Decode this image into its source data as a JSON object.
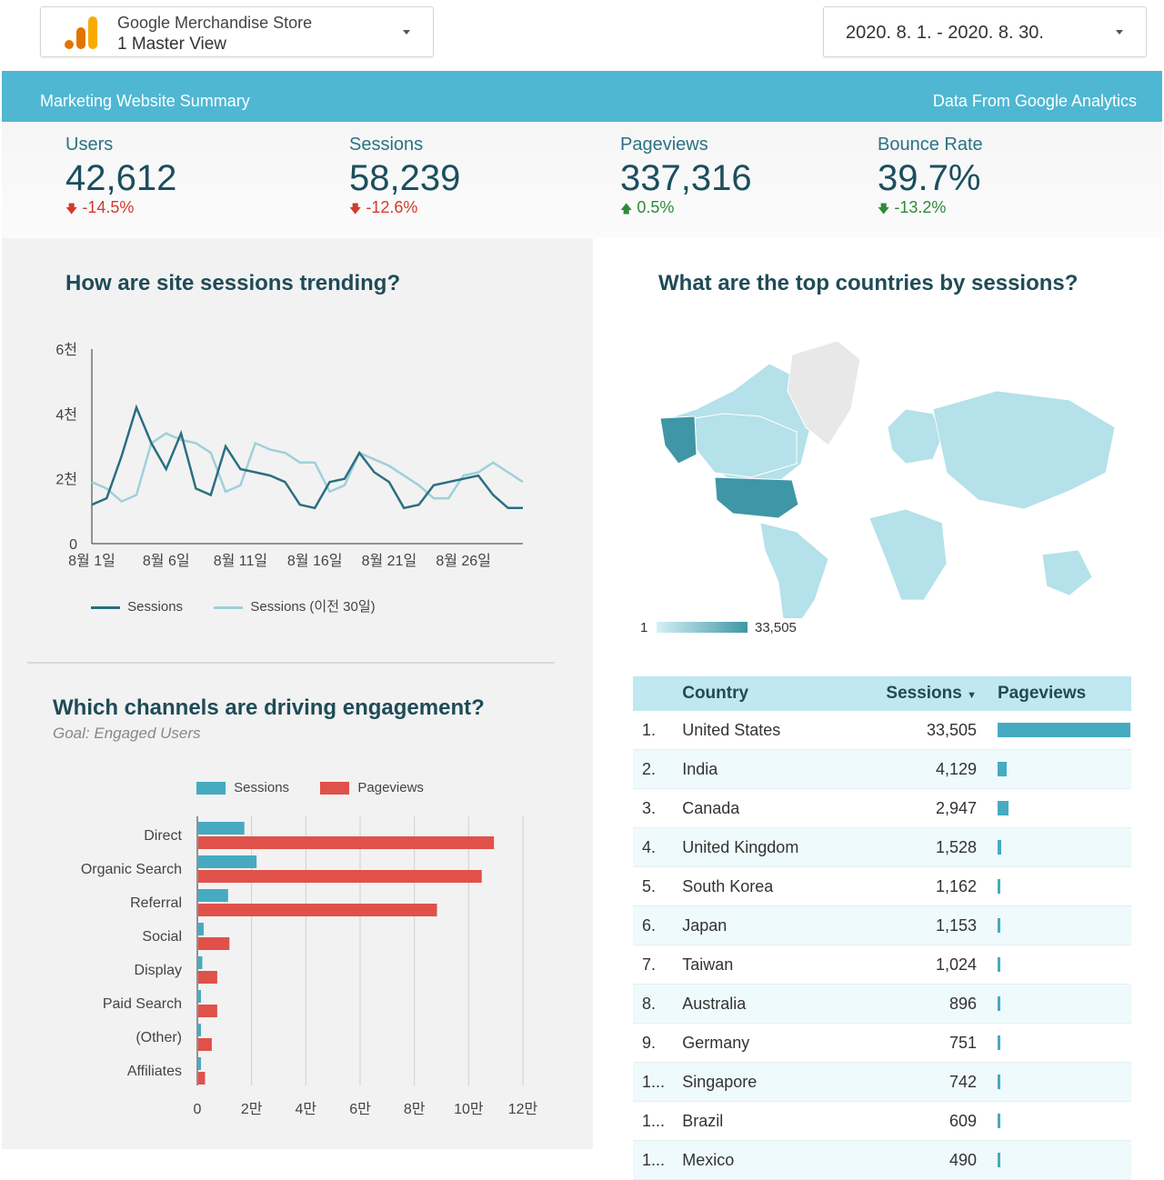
{
  "account_selector": {
    "title": "Google Merchandise Store",
    "view": "1 Master View"
  },
  "date_selector": {
    "value": "2020. 8. 1. - 2020. 8. 30."
  },
  "banner": {
    "left": "Marketing Website Summary",
    "right": "Data From Google Analytics"
  },
  "kpis": [
    {
      "label": "Users",
      "value": "42,612",
      "delta": "-14.5%",
      "trend": "down-bad"
    },
    {
      "label": "Sessions",
      "value": "58,239",
      "delta": "-12.6%",
      "trend": "down-bad"
    },
    {
      "label": "Pageviews",
      "value": "337,316",
      "delta": "0.5%",
      "trend": "up-good"
    },
    {
      "label": "Bounce Rate",
      "value": "39.7%",
      "delta": "-13.2%",
      "trend": "down-good"
    }
  ],
  "sessions_trend": {
    "heading": "How are site sessions trending?",
    "legend": [
      "Sessions",
      "Sessions (이전 30일)"
    ]
  },
  "countries_map": {
    "heading": "What are the top countries by sessions?",
    "scale_min": "1",
    "scale_max": "33,505"
  },
  "channels": {
    "heading": "Which channels are driving engagement?",
    "subtitle": "Goal: Engaged Users",
    "legend": [
      "Sessions",
      "Pageviews"
    ]
  },
  "country_table": {
    "headers": [
      "Country",
      "Sessions",
      "Pageviews"
    ],
    "rows": [
      {
        "rank": "1.",
        "country": "United States",
        "sessions": "33,505",
        "pageviews_fraction": 1.0
      },
      {
        "rank": "2.",
        "country": "India",
        "sessions": "4,129",
        "pageviews_fraction": 0.07
      },
      {
        "rank": "3.",
        "country": "Canada",
        "sessions": "2,947",
        "pageviews_fraction": 0.08
      },
      {
        "rank": "4.",
        "country": "United Kingdom",
        "sessions": "1,528",
        "pageviews_fraction": 0.025
      },
      {
        "rank": "5.",
        "country": "South Korea",
        "sessions": "1,162",
        "pageviews_fraction": 0.02
      },
      {
        "rank": "6.",
        "country": "Japan",
        "sessions": "1,153",
        "pageviews_fraction": 0.02
      },
      {
        "rank": "7.",
        "country": "Taiwan",
        "sessions": "1,024",
        "pageviews_fraction": 0.02
      },
      {
        "rank": "8.",
        "country": "Australia",
        "sessions": "896",
        "pageviews_fraction": 0.015
      },
      {
        "rank": "9.",
        "country": "Germany",
        "sessions": "751",
        "pageviews_fraction": 0.015
      },
      {
        "rank": "1...",
        "country": "Singapore",
        "sessions": "742",
        "pageviews_fraction": 0.015
      },
      {
        "rank": "1...",
        "country": "Brazil",
        "sessions": "609",
        "pageviews_fraction": 0.015
      },
      {
        "rank": "1...",
        "country": "Mexico",
        "sessions": "490",
        "pageviews_fraction": 0.012
      }
    ]
  },
  "colors": {
    "accent": "#50b7d2",
    "dark_teal": "#2b6f80",
    "light_teal": "#9fd0da",
    "pageviews_red": "#e0514a",
    "sessions_blue": "#46aac0"
  },
  "chart_data": [
    {
      "type": "line",
      "title": "How are site sessions trending?",
      "x": [
        "8월 1일",
        "8월 2일",
        "8월 3일",
        "8월 4일",
        "8월 5일",
        "8월 6일",
        "8월 7일",
        "8월 8일",
        "8월 9일",
        "8월 10일",
        "8월 11일",
        "8월 12일",
        "8월 13일",
        "8월 14일",
        "8월 15일",
        "8월 16일",
        "8월 17일",
        "8월 18일",
        "8월 19일",
        "8월 20일",
        "8월 21일",
        "8월 22일",
        "8월 23일",
        "8월 24일",
        "8월 25일",
        "8월 26일",
        "8월 27일",
        "8월 28일",
        "8월 29일",
        "8월 30일"
      ],
      "x_tick_labels": [
        "8월 1일",
        "8월 6일",
        "8월 11일",
        "8월 16일",
        "8월 21일",
        "8월 26일"
      ],
      "y_tick_labels": [
        "0",
        "2천",
        "4천",
        "6천"
      ],
      "ylim": [
        0,
        6000
      ],
      "series": [
        {
          "name": "Sessions",
          "color": "#2b6f80",
          "values": [
            1200,
            1400,
            2700,
            4200,
            3100,
            2300,
            3400,
            1700,
            1500,
            3000,
            2300,
            2200,
            2100,
            1900,
            1200,
            1100,
            1900,
            2000,
            2800,
            2200,
            1900,
            1100,
            1200,
            1800,
            1900,
            2000,
            2100,
            1500,
            1100,
            1100
          ]
        },
        {
          "name": "Sessions (이전 30일)",
          "color": "#9fd0da",
          "values": [
            1900,
            1700,
            1300,
            1500,
            3100,
            3400,
            3200,
            3100,
            2800,
            1600,
            1800,
            3100,
            2900,
            2800,
            2500,
            2500,
            1600,
            1800,
            2800,
            2600,
            2400,
            2100,
            1800,
            1400,
            1400,
            2100,
            2200,
            2500,
            2200,
            1900
          ]
        }
      ]
    },
    {
      "type": "bar",
      "orientation": "horizontal",
      "title": "Which channels are driving engagement?",
      "categories": [
        "Direct",
        "Organic Search",
        "Referral",
        "Social",
        "Display",
        "Paid Search",
        "(Other)",
        "Affiliates"
      ],
      "x_tick_labels": [
        "0",
        "2만",
        "4만",
        "6만",
        "8만",
        "10만",
        "12만"
      ],
      "xlim": [
        0,
        120000
      ],
      "series": [
        {
          "name": "Sessions",
          "color": "#46aac0",
          "values": [
            17000,
            21500,
            11000,
            2000,
            1500,
            1000,
            1000,
            1000
          ]
        },
        {
          "name": "Pageviews",
          "color": "#e0514a",
          "values": [
            109000,
            104500,
            88000,
            11500,
            7000,
            7000,
            5000,
            2500
          ]
        }
      ]
    }
  ]
}
